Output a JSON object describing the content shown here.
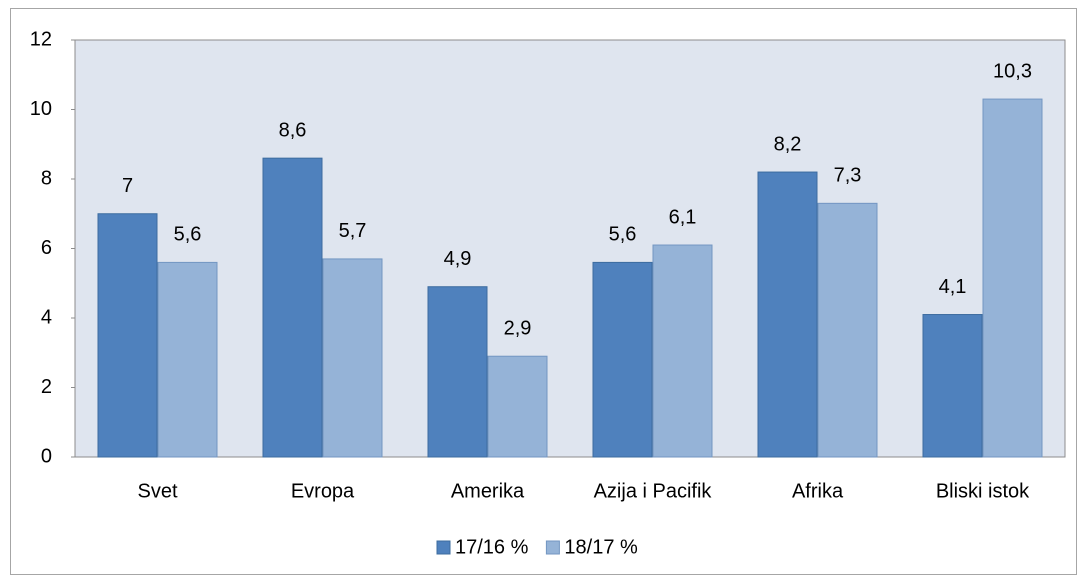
{
  "chart_data": {
    "type": "bar",
    "categories": [
      "Svet",
      "Evropa",
      "Amerika",
      "Azija i Pacifik",
      "Afrika",
      "Bliski istok"
    ],
    "series": [
      {
        "name": "17/16 %",
        "color": "#4f81bd",
        "values": [
          7,
          8.6,
          4.9,
          5.6,
          8.2,
          4.1
        ],
        "value_labels": [
          "7",
          "8,6",
          "4,9",
          "5,6",
          "8,2",
          "4,1"
        ]
      },
      {
        "name": "18/17 %",
        "color": "#95b3d7",
        "values": [
          5.6,
          5.7,
          2.9,
          6.1,
          7.3,
          10.3
        ],
        "value_labels": [
          "5,6",
          "5,7",
          "2,9",
          "6,1",
          "7,3",
          "10,3"
        ]
      }
    ],
    "ylim": [
      0,
      12
    ],
    "yticks": [
      0,
      2,
      4,
      6,
      8,
      10,
      12
    ],
    "grid": false,
    "legend": "bottom"
  }
}
